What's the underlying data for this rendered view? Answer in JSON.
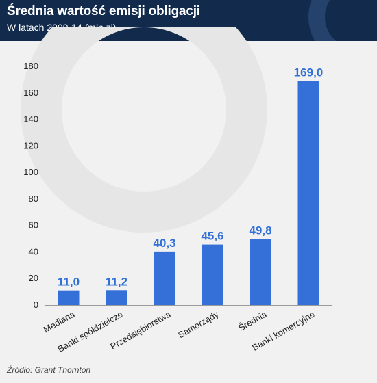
{
  "header": {
    "title": "Średnia wartość emisji obligacji",
    "subtitle": "W latach 2009-14 (mln zł)"
  },
  "source": "Źródło: Grant Thornton",
  "colors": {
    "bar": "#3470d8",
    "value_label": "#2f6fd6",
    "header_bg": "#122b4d",
    "background": "#f1f1f1"
  },
  "chart_data": {
    "type": "bar",
    "title": "Średnia wartość emisji obligacji",
    "subtitle": "W latach 2009-14 (mln zł)",
    "categories": [
      "Mediana",
      "Banki spółdzielcze",
      "Przedsiębiorstwa",
      "Samorządy",
      "Średnia",
      "Banki komercyjne"
    ],
    "values": [
      11.0,
      11.2,
      40.3,
      45.6,
      49.8,
      169.0
    ],
    "value_labels": [
      "11,0",
      "11,2",
      "40,3",
      "45,6",
      "49,8",
      "169,0"
    ],
    "yticks": [
      0,
      20,
      40,
      60,
      80,
      100,
      120,
      140,
      160,
      180
    ],
    "ylim": [
      0,
      180
    ],
    "xlabel": "",
    "ylabel": "",
    "grid": false,
    "legend": "none"
  }
}
